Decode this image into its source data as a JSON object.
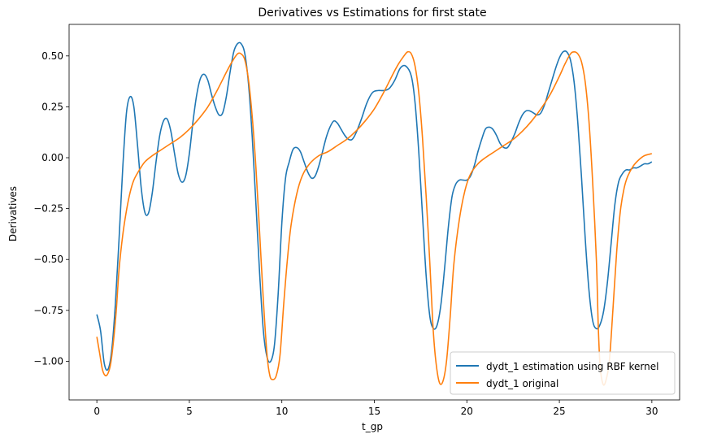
{
  "chart_data": {
    "type": "line",
    "title": "Derivatives vs Estimations for first state",
    "xlabel": "t_gp",
    "ylabel": "Derivatives",
    "xlim": [
      -1.5,
      31.5
    ],
    "ylim": [
      -1.19,
      0.655
    ],
    "xticks": [
      0,
      5,
      10,
      15,
      20,
      25,
      30
    ],
    "yticks": [
      -1.0,
      -0.75,
      -0.5,
      -0.25,
      0.0,
      0.25,
      0.5
    ],
    "xtick_labels": [
      "0",
      "5",
      "10",
      "15",
      "20",
      "25",
      "30"
    ],
    "ytick_labels": [
      "−1.00",
      "−0.75",
      "−0.50",
      "−0.25",
      "0.00",
      "0.25",
      "0.50"
    ],
    "grid": false,
    "legend_position": "lower-right",
    "series": [
      {
        "name": "dydt_1 estimation using RBF kernel",
        "color": "#1f77b4",
        "x": [
          0,
          0.2,
          0.4,
          0.6,
          0.8,
          1.0,
          1.2,
          1.4,
          1.6,
          1.8,
          2.0,
          2.2,
          2.4,
          2.6,
          2.8,
          3.0,
          3.2,
          3.4,
          3.6,
          3.8,
          4.0,
          4.2,
          4.4,
          4.6,
          4.8,
          5.0,
          5.2,
          5.4,
          5.6,
          5.8,
          6.0,
          6.2,
          6.4,
          6.6,
          6.8,
          7.0,
          7.2,
          7.4,
          7.6,
          7.8,
          8.0,
          8.2,
          8.4,
          8.6,
          8.8,
          9.0,
          9.2,
          9.4,
          9.6,
          9.8,
          10.0,
          10.2,
          10.4,
          10.6,
          10.8,
          11.0,
          11.2,
          11.4,
          11.6,
          11.8,
          12.0,
          12.2,
          12.4,
          12.6,
          12.8,
          13.0,
          13.2,
          13.4,
          13.6,
          13.8,
          14.0,
          14.3,
          14.6,
          14.9,
          15.2,
          15.5,
          15.8,
          16.1,
          16.4,
          16.7,
          17.0,
          17.2,
          17.4,
          17.6,
          17.8,
          18.0,
          18.2,
          18.4,
          18.6,
          18.8,
          19.0,
          19.2,
          19.4,
          19.6,
          19.8,
          20.0,
          20.2,
          20.4,
          20.6,
          20.8,
          21.0,
          21.2,
          21.4,
          21.6,
          21.8,
          22.0,
          22.2,
          22.4,
          22.6,
          22.8,
          23.0,
          23.2,
          23.4,
          23.6,
          23.8,
          24.0,
          24.2,
          24.4,
          24.6,
          24.8,
          25.0,
          25.2,
          25.4,
          25.6,
          25.8,
          26.0,
          26.2,
          26.4,
          26.6,
          26.8,
          27.0,
          27.2,
          27.4,
          27.6,
          27.8,
          28.0,
          28.2,
          28.4,
          28.6,
          28.8,
          29.0,
          29.2,
          29.4,
          29.6,
          29.8,
          30.0
        ],
        "y": [
          -0.77,
          -0.85,
          -1.01,
          -1.04,
          -0.95,
          -0.72,
          -0.4,
          -0.05,
          0.22,
          0.3,
          0.25,
          0.06,
          -0.15,
          -0.27,
          -0.27,
          -0.17,
          -0.02,
          0.11,
          0.18,
          0.19,
          0.13,
          0.02,
          -0.08,
          -0.12,
          -0.09,
          0.02,
          0.18,
          0.31,
          0.39,
          0.41,
          0.38,
          0.31,
          0.25,
          0.21,
          0.22,
          0.3,
          0.42,
          0.52,
          0.56,
          0.56,
          0.51,
          0.36,
          0.1,
          -0.23,
          -0.57,
          -0.85,
          -0.98,
          -1.0,
          -0.92,
          -0.67,
          -0.32,
          -0.1,
          -0.02,
          0.04,
          0.05,
          0.03,
          -0.02,
          -0.07,
          -0.1,
          -0.09,
          -0.04,
          0.03,
          0.1,
          0.15,
          0.18,
          0.17,
          0.14,
          0.11,
          0.09,
          0.09,
          0.12,
          0.19,
          0.27,
          0.32,
          0.33,
          0.33,
          0.34,
          0.38,
          0.44,
          0.45,
          0.4,
          0.27,
          0.03,
          -0.28,
          -0.58,
          -0.78,
          -0.84,
          -0.82,
          -0.72,
          -0.54,
          -0.34,
          -0.19,
          -0.13,
          -0.11,
          -0.11,
          -0.11,
          -0.09,
          -0.04,
          0.03,
          0.09,
          0.14,
          0.15,
          0.14,
          0.11,
          0.07,
          0.05,
          0.05,
          0.08,
          0.12,
          0.17,
          0.21,
          0.23,
          0.23,
          0.22,
          0.21,
          0.22,
          0.26,
          0.32,
          0.38,
          0.44,
          0.49,
          0.52,
          0.52,
          0.48,
          0.37,
          0.17,
          -0.1,
          -0.4,
          -0.65,
          -0.8,
          -0.84,
          -0.82,
          -0.75,
          -0.61,
          -0.42,
          -0.23,
          -0.12,
          -0.08,
          -0.06,
          -0.06,
          -0.05,
          -0.05,
          -0.04,
          -0.03,
          -0.03,
          -0.02
        ]
      },
      {
        "name": "dydt_1 original",
        "color": "#ff7f0e",
        "x": [
          0,
          0.15,
          0.3,
          0.45,
          0.6,
          0.75,
          0.9,
          1.05,
          1.2,
          1.4,
          1.6,
          1.8,
          2.0,
          2.3,
          2.6,
          3.0,
          3.5,
          4.0,
          4.5,
          5.0,
          5.5,
          6.0,
          6.5,
          7.0,
          7.3,
          7.6,
          7.8,
          8.0,
          8.2,
          8.4,
          8.6,
          8.8,
          9.0,
          9.2,
          9.35,
          9.5,
          9.7,
          9.9,
          10.1,
          10.3,
          10.5,
          10.8,
          11.1,
          11.5,
          12.0,
          12.5,
          13.0,
          13.5,
          14.0,
          14.5,
          15.0,
          15.5,
          16.0,
          16.3,
          16.6,
          16.8,
          17.0,
          17.2,
          17.4,
          17.6,
          17.8,
          18.0,
          18.15,
          18.3,
          18.5,
          18.7,
          18.9,
          19.1,
          19.3,
          19.6,
          19.9,
          20.2,
          20.6,
          21.0,
          21.5,
          22.0,
          22.5,
          23.0,
          23.5,
          24.0,
          24.5,
          25.0,
          25.3,
          25.6,
          25.8,
          26.0,
          26.2,
          26.4,
          26.6,
          26.8,
          27.0,
          27.1,
          27.2,
          27.35,
          27.5,
          27.7,
          27.9,
          28.1,
          28.3,
          28.5,
          28.7,
          29.0,
          29.3,
          29.6,
          30.0
        ],
        "y": [
          -0.88,
          -0.96,
          -1.04,
          -1.07,
          -1.06,
          -1.01,
          -0.9,
          -0.75,
          -0.55,
          -0.38,
          -0.26,
          -0.17,
          -0.11,
          -0.06,
          -0.02,
          0.01,
          0.04,
          0.07,
          0.1,
          0.14,
          0.19,
          0.25,
          0.33,
          0.42,
          0.47,
          0.51,
          0.51,
          0.48,
          0.38,
          0.2,
          -0.05,
          -0.37,
          -0.7,
          -0.97,
          -1.07,
          -1.09,
          -1.07,
          -0.97,
          -0.72,
          -0.5,
          -0.33,
          -0.18,
          -0.09,
          -0.03,
          0.01,
          0.03,
          0.06,
          0.09,
          0.13,
          0.18,
          0.24,
          0.32,
          0.41,
          0.46,
          0.5,
          0.52,
          0.51,
          0.45,
          0.32,
          0.1,
          -0.19,
          -0.52,
          -0.8,
          -0.98,
          -1.1,
          -1.1,
          -1.0,
          -0.78,
          -0.52,
          -0.3,
          -0.16,
          -0.08,
          -0.03,
          0.0,
          0.03,
          0.06,
          0.09,
          0.13,
          0.18,
          0.24,
          0.31,
          0.4,
          0.46,
          0.51,
          0.52,
          0.51,
          0.47,
          0.37,
          0.18,
          -0.12,
          -0.5,
          -0.82,
          -1.02,
          -1.11,
          -1.1,
          -1.0,
          -0.74,
          -0.46,
          -0.26,
          -0.15,
          -0.09,
          -0.04,
          -0.01,
          0.01,
          0.02
        ]
      }
    ]
  }
}
